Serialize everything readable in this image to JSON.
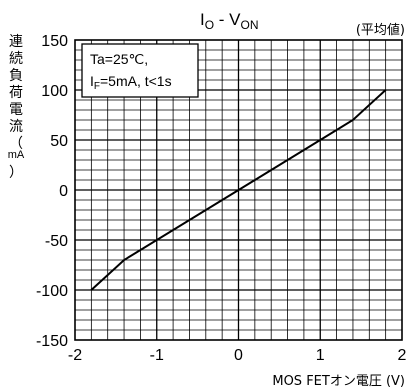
{
  "chart_data": {
    "type": "line",
    "title_main": "I",
    "title_sub1": "O",
    "title_mid": " - V",
    "title_sub2": "ON",
    "note": "(平均値)",
    "xlabel": "MOS FETオン電圧 (V)",
    "ylabel_chars": [
      "連",
      "続",
      "負",
      "荷",
      "電",
      "流",
      "（",
      "mA",
      "）"
    ],
    "annotation_line1": "Ta=25℃,",
    "annotation_line2_prefix": "I",
    "annotation_line2_sub": "F",
    "annotation_line2_rest": "=5mA, t<1s",
    "xlim": [
      -2,
      2
    ],
    "ylim": [
      -150,
      150
    ],
    "x_ticks": [
      -2,
      -1,
      0,
      1,
      2
    ],
    "y_ticks": [
      150,
      100,
      50,
      0,
      -50,
      -100,
      -150
    ],
    "x_minor_step": 0.2,
    "y_minor_step": 10,
    "grid": true,
    "series": [
      {
        "x": [
          -1.8,
          -1.4,
          1.4,
          1.8
        ],
        "y": [
          -100,
          -70,
          70,
          100
        ]
      }
    ]
  }
}
